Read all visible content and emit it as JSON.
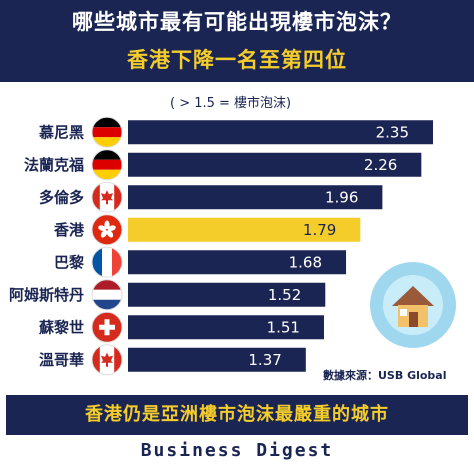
{
  "header": {
    "title": "哪些城市最有可能出現樓市泡沫？",
    "subtitle": "香港下降一名至第四位"
  },
  "note": "( > 1.5 = 樓市泡沫)",
  "source": "數據來源：USB Global",
  "banner": "香港仍是亞洲樓市泡沫最嚴重的城市",
  "brand": "Business Digest",
  "colors": {
    "navy": "#1b2553",
    "highlight": "#f5cd2a",
    "house_circle": "#9fd8ee"
  },
  "chart_data": {
    "type": "bar",
    "orientation": "horizontal",
    "categories": [
      "慕尼黑",
      "法蘭克福",
      "多倫多",
      "香港",
      "巴黎",
      "阿姆斯特丹",
      "蘇黎世",
      "溫哥華"
    ],
    "values": [
      2.35,
      2.26,
      1.96,
      1.79,
      1.68,
      1.52,
      1.51,
      1.37
    ],
    "value_labels": [
      "2.35",
      "2.26",
      "1.96",
      "1.79",
      "1.68",
      "1.52",
      "1.51",
      "1.37"
    ],
    "flags": [
      "germany-flag",
      "germany-flag",
      "canada-flag",
      "hong-kong-flag",
      "france-flag",
      "netherlands-flag",
      "switzerland-flag",
      "canada-flag"
    ],
    "highlight_category": "香港",
    "xlim": [
      0,
      2.5
    ],
    "grid": false,
    "title": "",
    "xlabel": "",
    "ylabel": ""
  }
}
